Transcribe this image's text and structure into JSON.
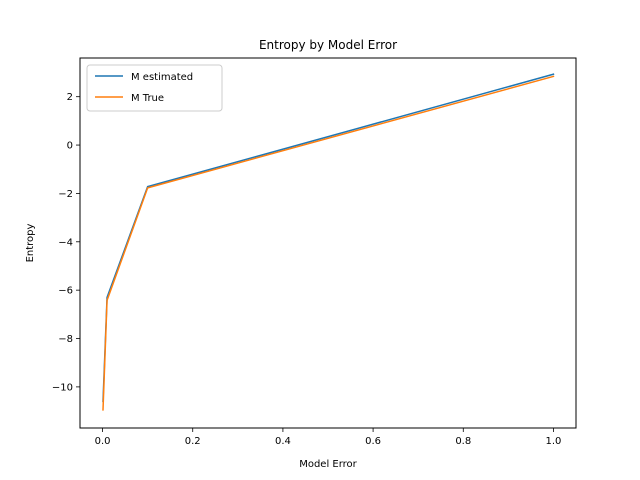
{
  "chart_data": {
    "type": "line",
    "title": "Entropy by Model Error",
    "xlabel": "Model Error",
    "ylabel": "Entropy",
    "xlim": [
      -0.05,
      1.05
    ],
    "ylim": [
      -11.7,
      3.6
    ],
    "xticks": [
      0.0,
      0.2,
      0.4,
      0.6,
      0.8,
      1.0
    ],
    "xtick_labels": [
      "0.0",
      "0.2",
      "0.4",
      "0.6",
      "0.8",
      "1.0"
    ],
    "yticks": [
      -10,
      -8,
      -6,
      -4,
      -2,
      0,
      2
    ],
    "ytick_labels": [
      "−10",
      "−8",
      "−6",
      "−4",
      "−2",
      "0",
      "2"
    ],
    "grid": false,
    "legend_position": "upper-left",
    "series": [
      {
        "name": "M estimated",
        "color": "#1f77b4",
        "x": [
          0.001,
          0.01,
          0.1,
          1.0
        ],
        "y": [
          -10.6,
          -6.3,
          -1.72,
          2.93
        ]
      },
      {
        "name": "M True",
        "color": "#ff7f0e",
        "x": [
          0.001,
          0.01,
          0.1,
          1.0
        ],
        "y": [
          -10.95,
          -6.42,
          -1.77,
          2.84
        ]
      }
    ]
  }
}
